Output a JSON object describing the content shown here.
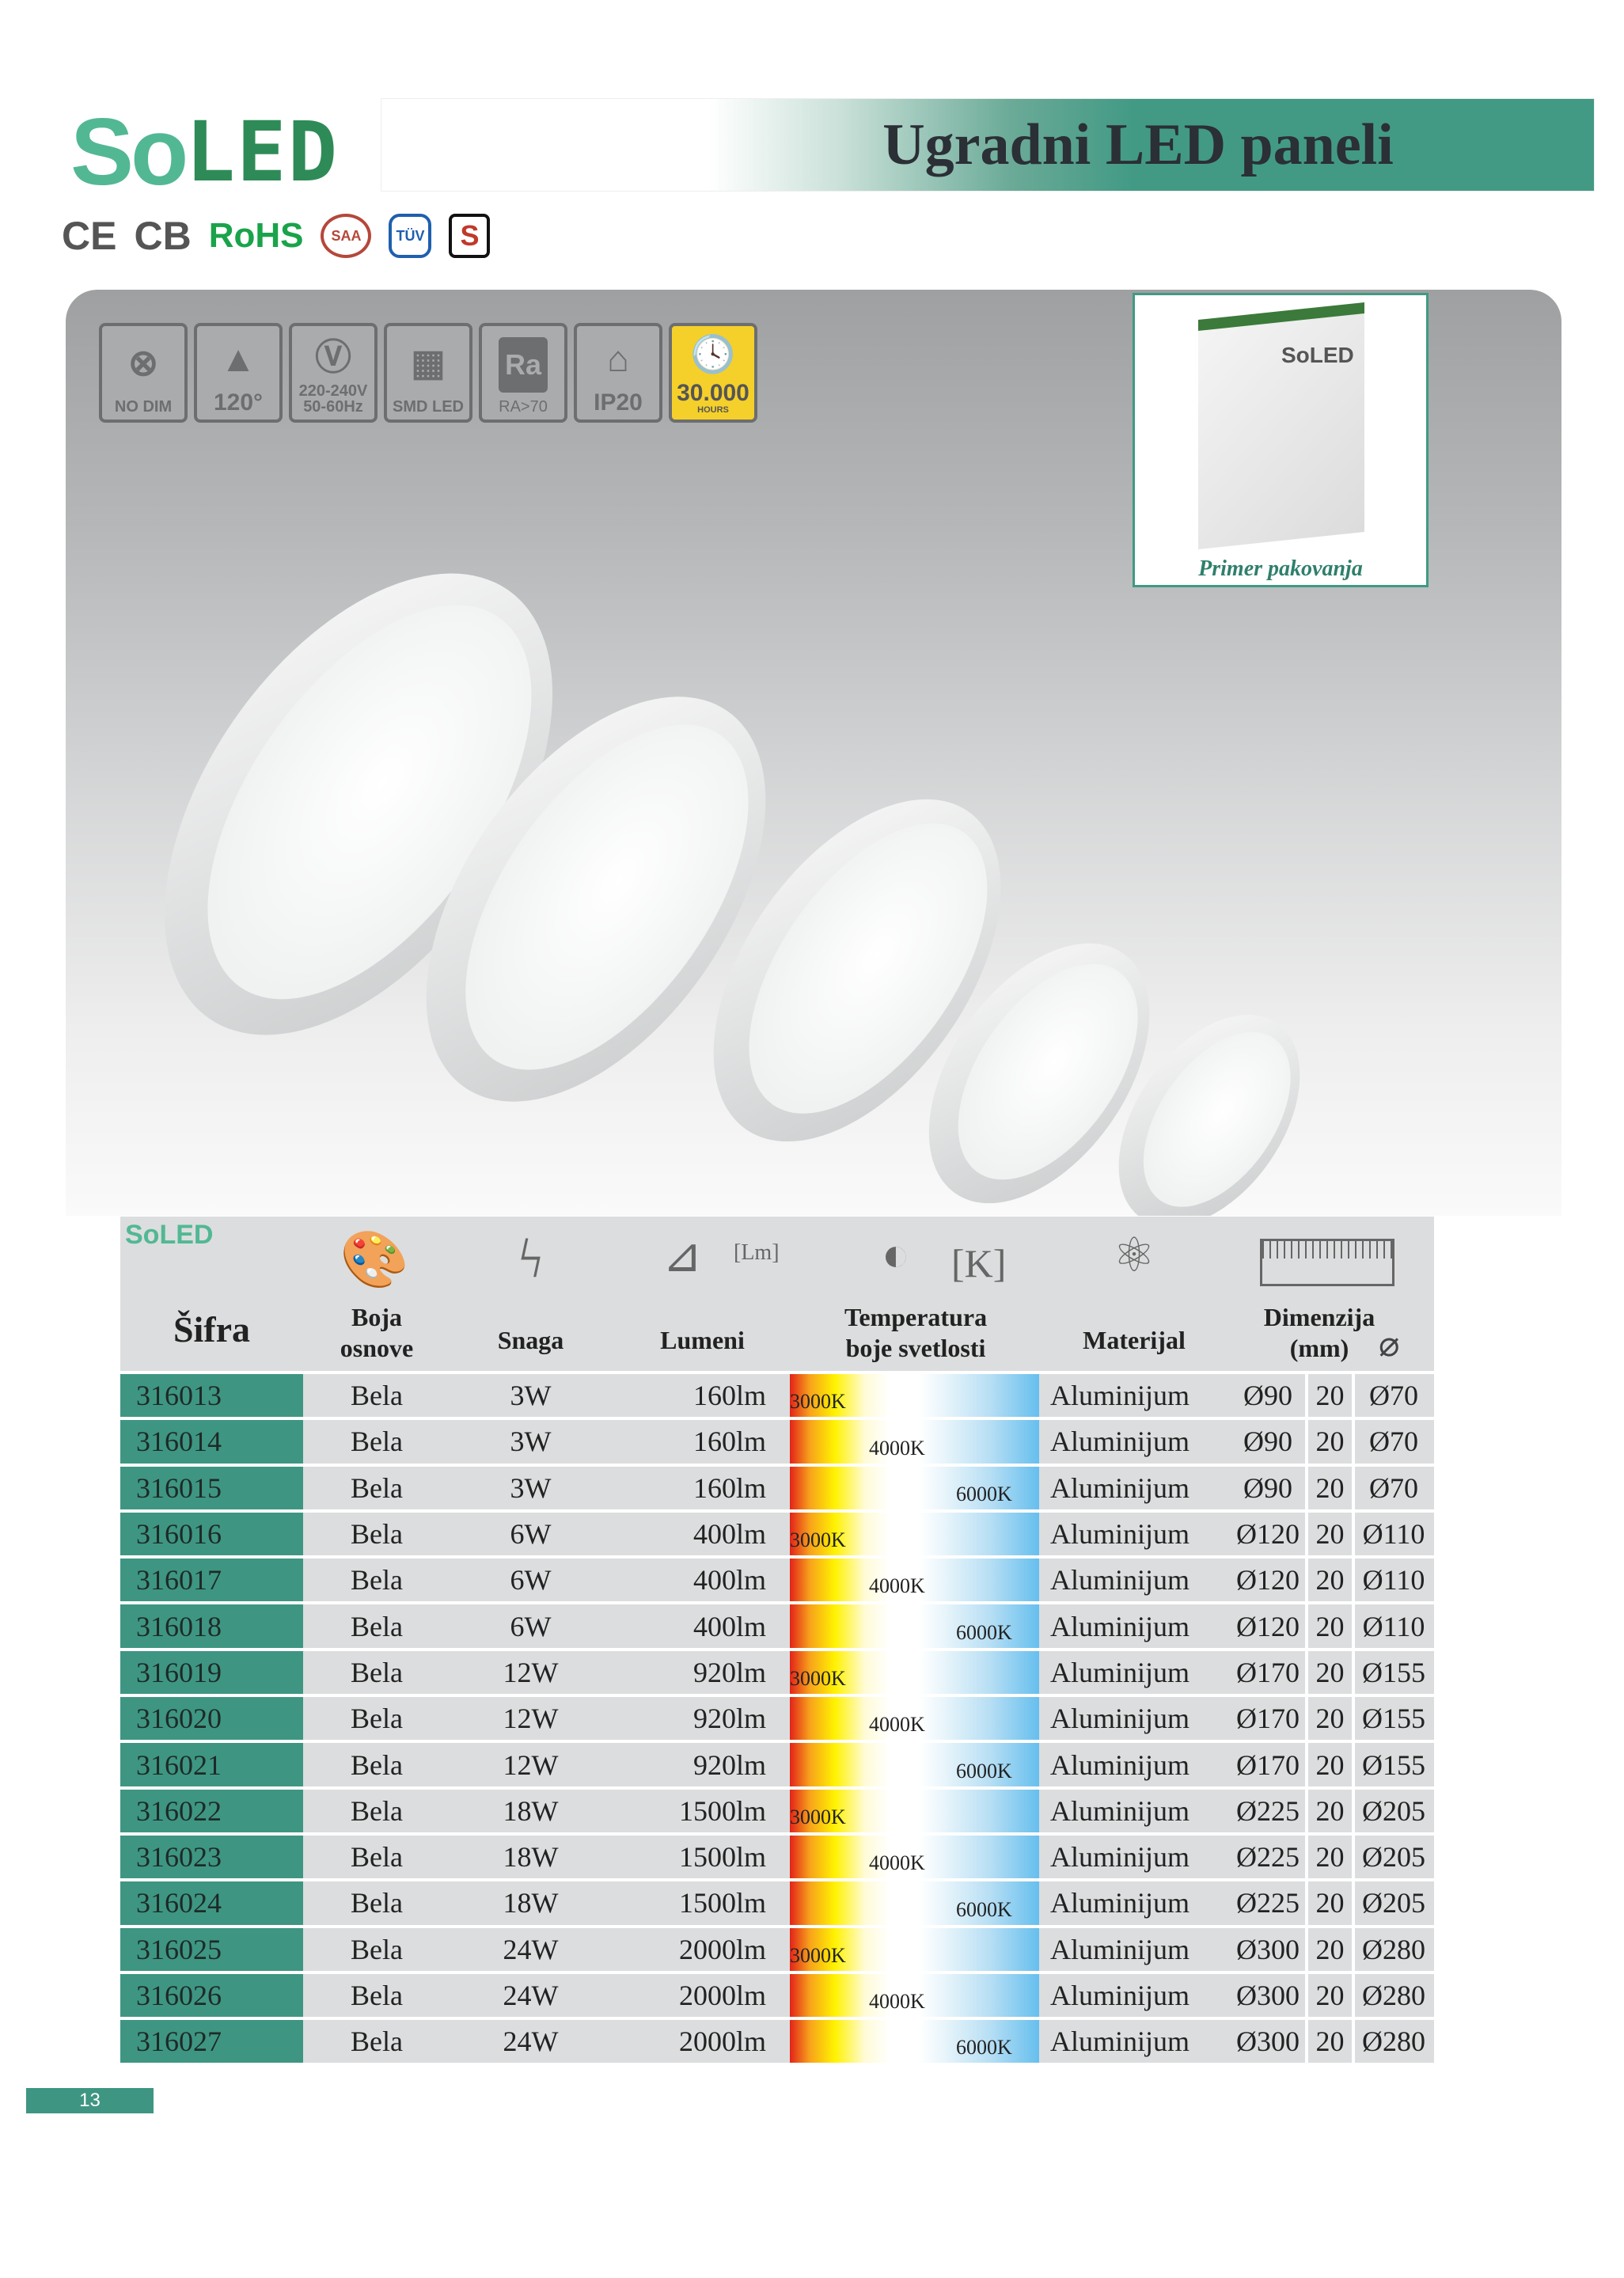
{
  "header": {
    "logo_so": "So",
    "logo_led": "LED",
    "title": "Ugradni LED paneli"
  },
  "certifications": [
    "CE",
    "CB",
    "RoHS",
    "SAA",
    "TÜV",
    "S"
  ],
  "features": [
    {
      "icon": "no-dim-icon",
      "label": "NO DIM"
    },
    {
      "icon": "beam-angle-icon",
      "label": "120°"
    },
    {
      "icon": "voltage-plug-icon",
      "label": "220-240V\n50-60Hz"
    },
    {
      "icon": "smd-led-icon",
      "label": "SMD LED"
    },
    {
      "icon": "ra-icon",
      "icon_text": "Ra",
      "label": "RA>70"
    },
    {
      "icon": "house-indoor-icon",
      "label": "IP20"
    },
    {
      "icon": "clock-icon",
      "label": "30.000",
      "sublabel": "HOURS"
    }
  ],
  "package": {
    "brand": "SoLED",
    "caption": "Primer pakovanja"
  },
  "table": {
    "logo": "SoLED",
    "headers": {
      "code": "Šifra",
      "color": "Boja osnove",
      "power": "Snaga",
      "lumens": "Lumeni",
      "lumens_unit": "[Lm]",
      "temp": "Temperatura boje svetlosti",
      "temp_unit": "[K]",
      "material": "Materijal",
      "dims": "Dimenzija (mm)"
    },
    "rows": [
      [
        "316013",
        "Bela",
        "3W",
        "160lm",
        "3000K",
        "Aluminijum",
        "Ø90",
        "20",
        "Ø70"
      ],
      [
        "316014",
        "Bela",
        "3W",
        "160lm",
        "4000K",
        "Aluminijum",
        "Ø90",
        "20",
        "Ø70"
      ],
      [
        "316015",
        "Bela",
        "3W",
        "160lm",
        "6000K",
        "Aluminijum",
        "Ø90",
        "20",
        "Ø70"
      ],
      [
        "316016",
        "Bela",
        "6W",
        "400lm",
        "3000K",
        "Aluminijum",
        "Ø120",
        "20",
        "Ø110"
      ],
      [
        "316017",
        "Bela",
        "6W",
        "400lm",
        "4000K",
        "Aluminijum",
        "Ø120",
        "20",
        "Ø110"
      ],
      [
        "316018",
        "Bela",
        "6W",
        "400lm",
        "6000K",
        "Aluminijum",
        "Ø120",
        "20",
        "Ø110"
      ],
      [
        "316019",
        "Bela",
        "12W",
        "920lm",
        "3000K",
        "Aluminijum",
        "Ø170",
        "20",
        "Ø155"
      ],
      [
        "316020",
        "Bela",
        "12W",
        "920lm",
        "4000K",
        "Aluminijum",
        "Ø170",
        "20",
        "Ø155"
      ],
      [
        "316021",
        "Bela",
        "12W",
        "920lm",
        "6000K",
        "Aluminijum",
        "Ø170",
        "20",
        "Ø155"
      ],
      [
        "316022",
        "Bela",
        "18W",
        "1500lm",
        "3000K",
        "Aluminijum",
        "Ø225",
        "20",
        "Ø205"
      ],
      [
        "316023",
        "Bela",
        "18W",
        "1500lm",
        "4000K",
        "Aluminijum",
        "Ø225",
        "20",
        "Ø205"
      ],
      [
        "316024",
        "Bela",
        "18W",
        "1500lm",
        "6000K",
        "Aluminijum",
        "Ø225",
        "20",
        "Ø205"
      ],
      [
        "316025",
        "Bela",
        "24W",
        "2000lm",
        "3000K",
        "Aluminijum",
        "Ø300",
        "20",
        "Ø280"
      ],
      [
        "316026",
        "Bela",
        "24W",
        "2000lm",
        "4000K",
        "Aluminijum",
        "Ø300",
        "20",
        "Ø280"
      ],
      [
        "316027",
        "Bela",
        "24W",
        "2000lm",
        "6000K",
        "Aluminijum",
        "Ø300",
        "20",
        "Ø280"
      ]
    ]
  },
  "page_number": "13",
  "colors": {
    "accent": "#3e9682",
    "logo_green": "#52b894",
    "hours_yellow": "#f5d02a"
  }
}
